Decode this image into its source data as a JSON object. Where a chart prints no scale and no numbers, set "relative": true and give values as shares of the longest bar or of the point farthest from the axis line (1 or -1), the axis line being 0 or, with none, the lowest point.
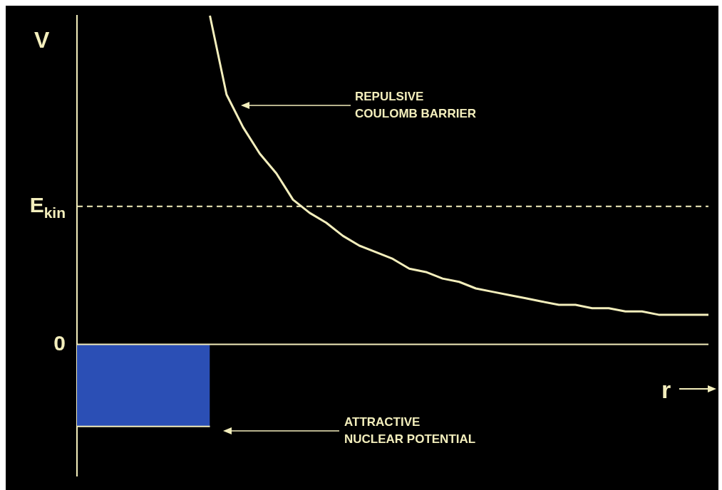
{
  "chart_data": {
    "type": "line",
    "relative": true,
    "ylabel": "V",
    "xlabel": "r",
    "legend": false,
    "categories": [
      null,
      null,
      null,
      null,
      null,
      null,
      null,
      null,
      null,
      null,
      null,
      null,
      null,
      null,
      null,
      null,
      null,
      null,
      null,
      null,
      null,
      null,
      null,
      null,
      null,
      null,
      null,
      null,
      null,
      null,
      null,
      null,
      null,
      null,
      null,
      null,
      null,
      null,
      null
    ],
    "series": [
      {
        "type": "area",
        "color": "#2b4fb5",
        "values": [
          -0.25,
          -0.25,
          -0.25,
          -0.25,
          -0.25,
          -0.25,
          -0.25,
          -0.25,
          -0.25,
          null,
          null,
          null,
          null,
          null,
          null,
          null,
          null,
          null,
          null,
          null,
          null,
          null,
          null,
          null,
          null,
          null,
          null,
          null,
          null,
          null,
          null,
          null,
          null,
          null,
          null,
          null,
          null,
          null,
          null
        ]
      },
      {
        "type": "line",
        "color": "#f3eebc",
        "values": [
          null,
          null,
          null,
          null,
          null,
          null,
          null,
          null,
          1,
          0.76,
          0.66,
          0.58,
          0.52,
          0.44,
          0.4,
          0.37,
          0.33,
          0.3,
          0.28,
          0.26,
          0.23,
          0.22,
          0.2,
          0.19,
          0.17,
          0.16,
          0.15,
          0.14,
          0.13,
          0.12,
          0.12,
          0.11,
          0.11,
          0.1,
          0.1,
          0.09,
          0.09,
          0.09,
          0.09
        ]
      }
    ],
    "ref_lines": [
      {
        "axis": "y",
        "value": 0,
        "label": "0",
        "color": "#f3eebc",
        "line_style": "solid"
      },
      {
        "axis": "y",
        "value": 0.42,
        "label": "E$_{kin}$",
        "color": "#f3eebc",
        "line_style": "dashed"
      }
    ],
    "annotations": [
      "REPULSIVE\nCOULOMB BARRIER",
      "ATTRACTIVE\nNUCLEAR POTENTIAL"
    ]
  }
}
